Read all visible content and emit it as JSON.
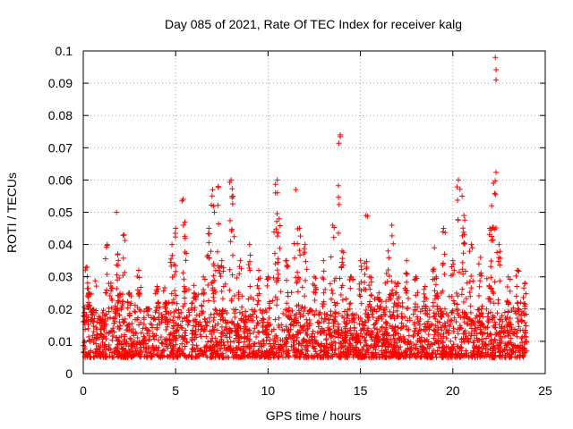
{
  "chart_data": {
    "type": "scatter",
    "title": "Day 085 of 2021, Rate Of TEC Index for receiver kalg",
    "xlabel": "GPS time / hours",
    "ylabel": "ROTI / TECUs",
    "xlim": [
      0,
      25
    ],
    "ylim": [
      0,
      0.1
    ],
    "x_ticks": [
      0,
      5,
      10,
      15,
      20,
      25
    ],
    "x_tick_labels": [
      "0",
      "5",
      "10",
      "15",
      "20",
      "25"
    ],
    "y_ticks": [
      0,
      0.01,
      0.02,
      0.03,
      0.04,
      0.05,
      0.06,
      0.07,
      0.08,
      0.09,
      0.1
    ],
    "y_tick_labels": [
      "0",
      "0.01",
      "0.02",
      "0.03",
      "0.04",
      "0.05",
      "0.06",
      "0.07",
      "0.08",
      "0.09",
      "0.1"
    ],
    "grid": true,
    "marker": "+",
    "color": "#ff0000",
    "series": [
      {
        "name": "ROTI",
        "x": [
          0.2,
          0.3,
          0.5,
          1.0,
          1.3,
          1.5,
          1.8,
          1.9,
          2.2,
          2.5,
          3.0,
          3.5,
          4.0,
          4.5,
          4.8,
          5.0,
          5.4,
          5.5,
          6.0,
          6.5,
          6.8,
          7.0,
          7.1,
          7.3,
          7.5,
          8.0,
          8.1,
          8.5,
          9.0,
          9.5,
          10.0,
          10.4,
          10.5,
          10.6,
          11.0,
          11.5,
          11.7,
          12.0,
          12.5,
          13.0,
          13.5,
          13.9,
          14.0,
          14.5,
          15.0,
          15.3,
          15.5,
          16.0,
          16.5,
          16.7,
          17.0,
          17.5,
          18.0,
          18.5,
          19.0,
          19.1,
          19.5,
          20.0,
          20.3,
          20.5,
          20.6,
          21.0,
          21.5,
          22.0,
          22.1,
          22.2,
          22.3,
          22.5,
          23.0,
          23.5,
          23.9
        ],
        "y": [
          0.033,
          0.025,
          0.018,
          0.012,
          0.04,
          0.028,
          0.05,
          0.035,
          0.043,
          0.025,
          0.032,
          0.02,
          0.027,
          0.022,
          0.04,
          0.045,
          0.054,
          0.047,
          0.025,
          0.03,
          0.045,
          0.057,
          0.05,
          0.058,
          0.035,
          0.06,
          0.055,
          0.035,
          0.04,
          0.032,
          0.03,
          0.056,
          0.06,
          0.048,
          0.035,
          0.057,
          0.045,
          0.04,
          0.03,
          0.035,
          0.046,
          0.074,
          0.038,
          0.03,
          0.035,
          0.049,
          0.03,
          0.025,
          0.038,
          0.046,
          0.028,
          0.035,
          0.03,
          0.027,
          0.039,
          0.03,
          0.045,
          0.035,
          0.06,
          0.055,
          0.049,
          0.04,
          0.036,
          0.045,
          0.052,
          0.059,
          0.098,
          0.04,
          0.03,
          0.032,
          0.028
        ]
      }
    ],
    "dense_band": {
      "description": "bulk of samples between",
      "y_low": 0.005,
      "y_high": 0.02
    }
  }
}
